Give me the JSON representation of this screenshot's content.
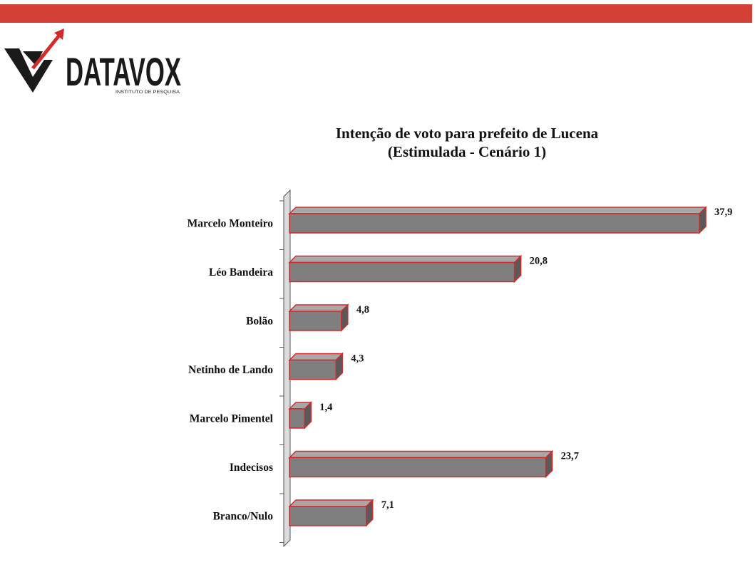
{
  "header": {
    "bar_color": "#d24036",
    "brand_name": "DATAVOX",
    "brand_tagline": "INSTITUTO DE PESQUISA",
    "logo_icon": "checkmark-arrow-logo"
  },
  "colors": {
    "bar_face": "#7f7f7f",
    "bar_top": "#a8a8a8",
    "bar_side": "#595959",
    "bar_outline": "#d42a2a",
    "axis_wall": "#dcdcdc"
  },
  "chart_data": {
    "type": "bar",
    "orientation": "horizontal",
    "style": "3d",
    "title": "Intenção de voto para prefeito de Lucena",
    "subtitle": "(Estimulada - Cenário 1)",
    "categories": [
      "Marcelo Monteiro",
      "Léo Bandeira",
      "Bolão",
      "Netinho de Lando",
      "Marcelo Pimentel",
      "Indecisos",
      "Branco/Nulo"
    ],
    "values": [
      37.9,
      20.8,
      4.8,
      4.3,
      1.4,
      23.7,
      7.1
    ],
    "value_labels": [
      "37,9",
      "20,8",
      "4,8",
      "4,3",
      "1,4",
      "23,7",
      "7,1"
    ],
    "xlim": [
      0,
      37.9
    ],
    "grid": false,
    "legend": "none"
  }
}
